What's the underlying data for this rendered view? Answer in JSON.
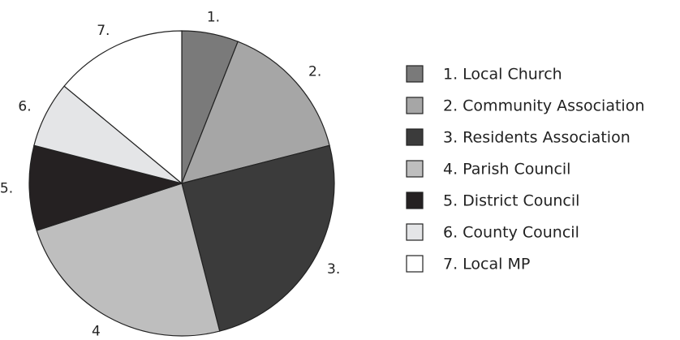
{
  "chart_data": {
    "type": "pie",
    "categories": [
      "1. Local Church",
      "2. Community Association",
      "3. Residents Association",
      "4. Parish Council",
      "5. District Council",
      "6. County Council",
      "7. Local MP"
    ],
    "labels": [
      "1.",
      "2.",
      "3.",
      "4",
      "5.",
      "6.",
      "7."
    ],
    "values": [
      6,
      15,
      25,
      24,
      9,
      7,
      14
    ],
    "colors": [
      "#7a7a7a",
      "#a6a6a6",
      "#3b3b3b",
      "#bebebe",
      "#252122",
      "#e4e5e7",
      "#ffffff"
    ],
    "legend": "right"
  }
}
